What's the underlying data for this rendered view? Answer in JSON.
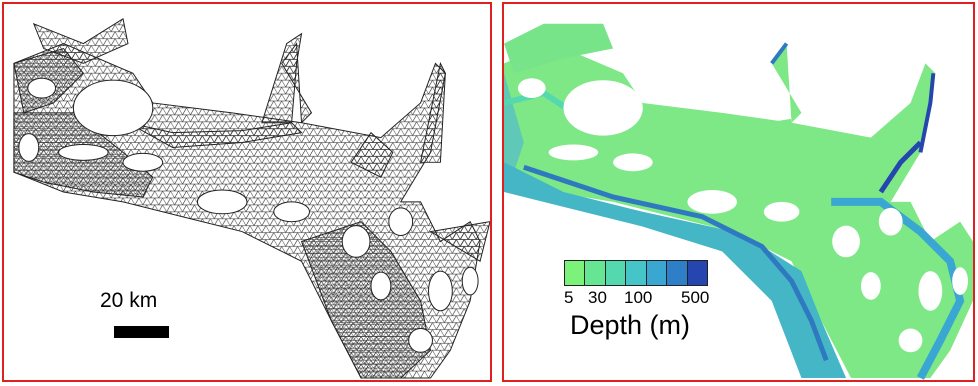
{
  "left_panel": {
    "scale_label": "20 km"
  },
  "right_panel": {
    "legend": {
      "title": "Depth (m)",
      "ticks": [
        "5",
        "30",
        "100",
        "500"
      ],
      "colors": [
        "#7cf27a",
        "#66e692",
        "#54d9ae",
        "#46c5c8",
        "#3aa7d2",
        "#2f7fc8",
        "#2446ae"
      ]
    }
  },
  "colors": {
    "frame": "#e01f1f",
    "shallow": "#7ee786",
    "deep": "#2446ae"
  }
}
